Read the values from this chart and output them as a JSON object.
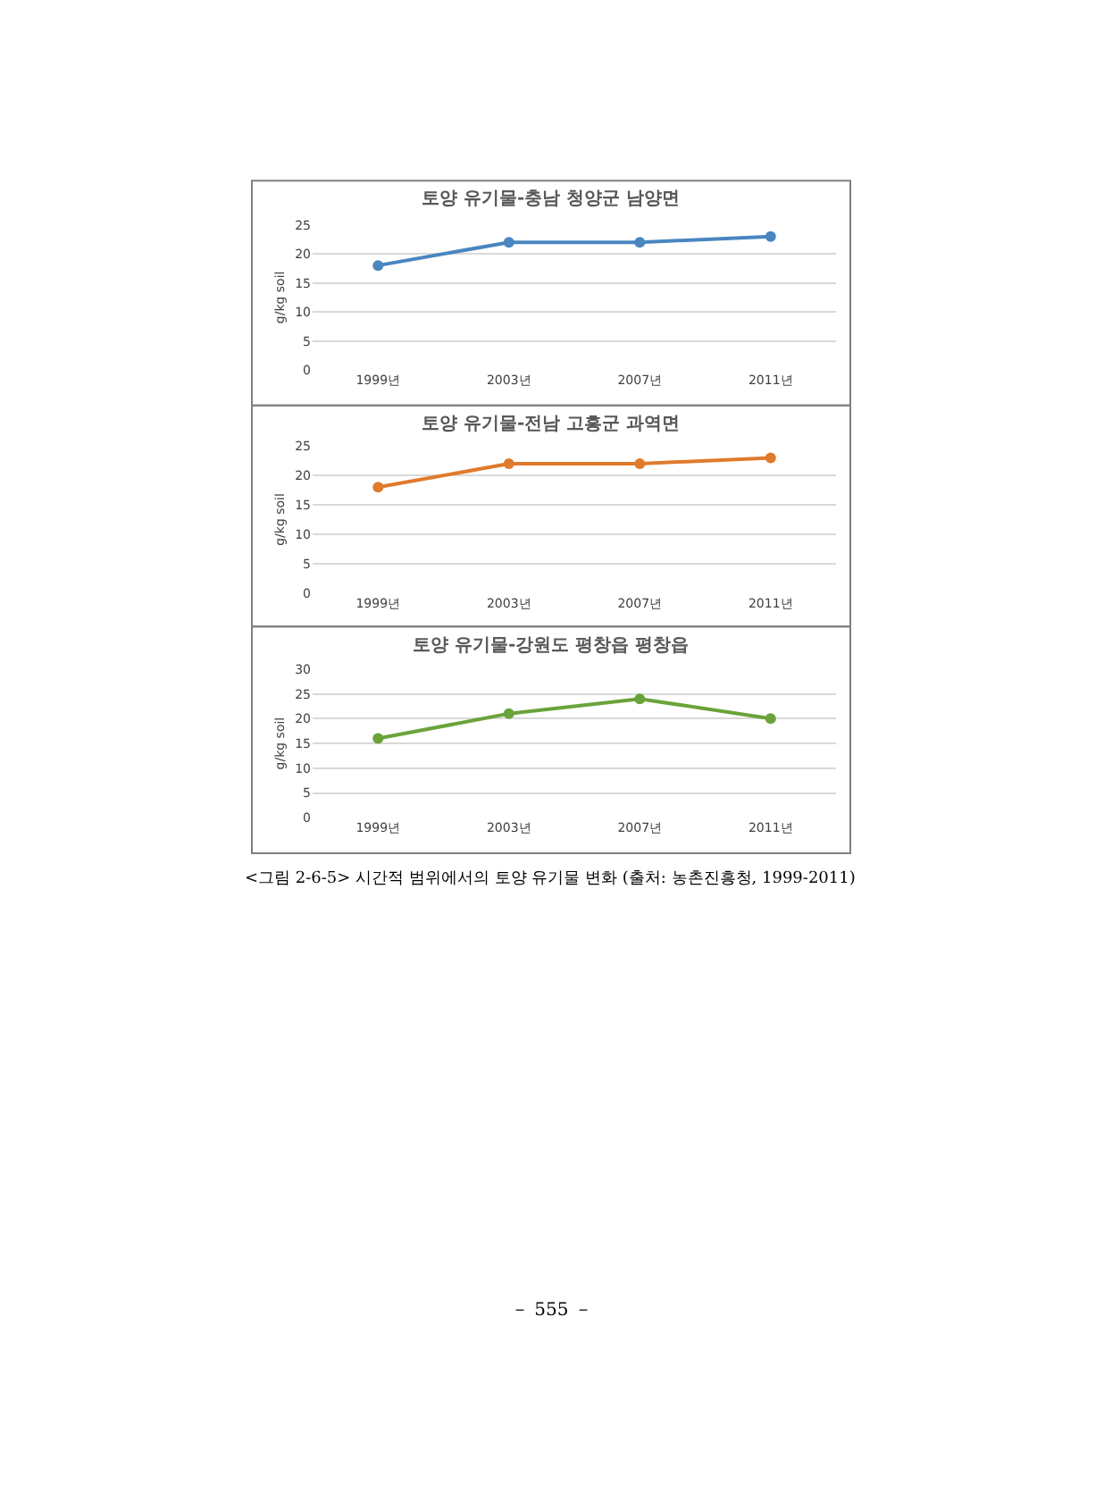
{
  "chart_data": [
    {
      "type": "line",
      "title": "토양 유기물-충남 청양군 남양면",
      "ylabel": "g/kg soil",
      "categories": [
        "1999년",
        "2003년",
        "2007년",
        "2011년"
      ],
      "series": [
        {
          "color": "#4a86c0",
          "values": [
            18,
            22,
            22,
            23
          ]
        }
      ],
      "ylim": [
        0,
        25
      ],
      "yticks": [
        0,
        5,
        10,
        15,
        20,
        25
      ],
      "grid": "y",
      "marker": "circle"
    },
    {
      "type": "line",
      "title": "토양 유기물-전남 고흥군 과역면",
      "ylabel": "g/kg soil",
      "categories": [
        "1999년",
        "2003년",
        "2007년",
        "2011년"
      ],
      "series": [
        {
          "color": "#e07a2c",
          "values": [
            18,
            22,
            22,
            23
          ]
        }
      ],
      "ylim": [
        0,
        25
      ],
      "yticks": [
        0,
        5,
        10,
        15,
        20,
        25
      ],
      "grid": "y",
      "marker": "circle"
    },
    {
      "type": "line",
      "title": "토양 유기물-강원도 평창읍 평창읍",
      "ylabel": "g/kg soil",
      "categories": [
        "1999년",
        "2003년",
        "2007년",
        "2011년"
      ],
      "series": [
        {
          "color": "#6aa33a",
          "values": [
            16,
            21,
            24,
            20
          ]
        }
      ],
      "ylim": [
        0,
        30
      ],
      "yticks": [
        0,
        5,
        10,
        15,
        20,
        25,
        30
      ],
      "grid": "y",
      "marker": "circle",
      "annotations": [
        "<그림 2-6-5> 시간적 범위에서의 토양 유기물 변화 (출처: 농촌진흥청, 1999-2011)",
        "－ 555 －"
      ]
    }
  ]
}
